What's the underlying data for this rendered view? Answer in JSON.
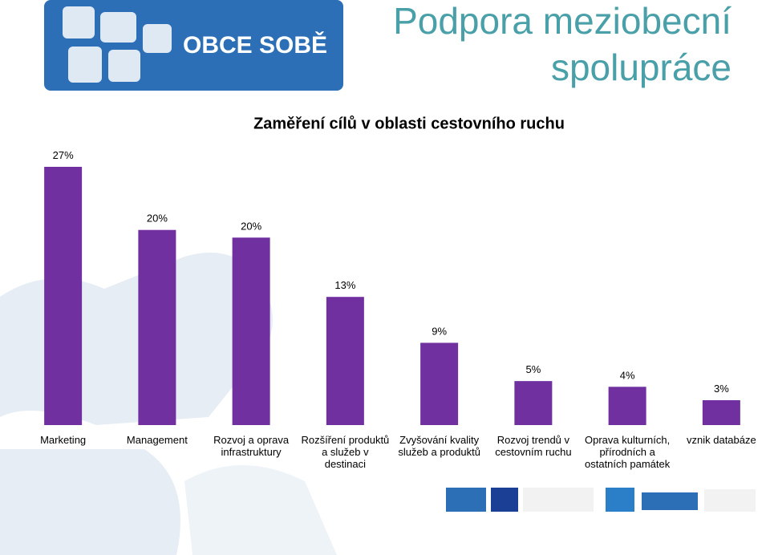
{
  "slide": {
    "logo": "OBCE SOBĚ",
    "heading": [
      "Podpora meziobecní",
      "spolupráce"
    ]
  },
  "chart_data": {
    "type": "bar",
    "title": "Zaměření cílů v oblasti cestovního ruchu",
    "categories": [
      "Marketing",
      "Management",
      "Rozvoj a oprava infrastruktury",
      "Rozšíření produktů a služeb v destinaci",
      "Zvyšování kvality služeb a produktů",
      "Rozvoj trendů v cestovním ruchu",
      "Oprava kulturních, přírodních a ostatních památek",
      "vznik databáze"
    ],
    "values": [
      27,
      20.4,
      19.6,
      13.4,
      8.6,
      4.6,
      4.0,
      2.6
    ],
    "value_labels": [
      "27%",
      "20%",
      "20%",
      "13%",
      "9%",
      "5%",
      "4%",
      "3%"
    ],
    "color": "#7030a0"
  }
}
